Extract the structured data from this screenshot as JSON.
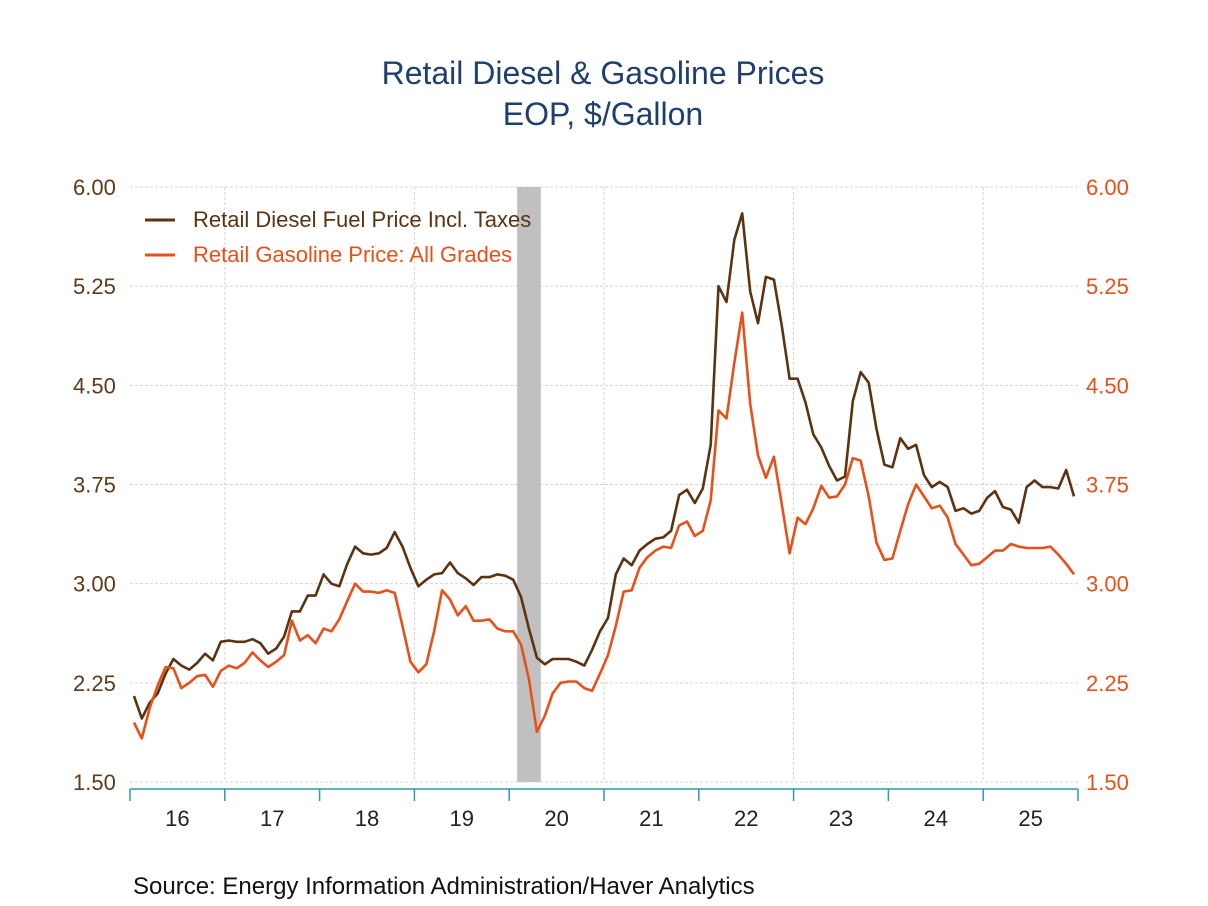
{
  "chart_data": {
    "type": "line",
    "title": "Retail Diesel & Gasoline Prices",
    "subtitle": "EOP, $/Gallon",
    "source": "Source:  Energy Information Administration/Haver Analytics",
    "ylim": [
      1.5,
      6.0
    ],
    "yticks": [
      "1.50",
      "2.25",
      "3.00",
      "3.75",
      "4.50",
      "5.25",
      "6.00"
    ],
    "xlim": [
      2016,
      2026
    ],
    "xtick_labels": [
      "16",
      "17",
      "18",
      "19",
      "20",
      "21",
      "22",
      "23",
      "24",
      "25"
    ],
    "grid": true,
    "legend_position": "top-left",
    "recession_shading": {
      "start": "2020-02",
      "end": "2020-04",
      "color": "#c0c0c0"
    },
    "axis_color": "#2a9bb0",
    "series": [
      {
        "name": "Retail Diesel Fuel Price Incl. Taxes",
        "color": "#5c3310",
        "axis": "left",
        "start": "2016-01",
        "frequency": "monthly",
        "values": [
          2.15,
          1.98,
          2.1,
          2.17,
          2.32,
          2.43,
          2.38,
          2.35,
          2.4,
          2.47,
          2.42,
          2.56,
          2.57,
          2.56,
          2.56,
          2.58,
          2.55,
          2.47,
          2.51,
          2.6,
          2.79,
          2.79,
          2.91,
          2.91,
          3.07,
          3.0,
          2.98,
          3.15,
          3.28,
          3.23,
          3.22,
          3.23,
          3.27,
          3.39,
          3.28,
          3.12,
          2.98,
          3.03,
          3.07,
          3.08,
          3.16,
          3.08,
          3.04,
          2.99,
          3.05,
          3.05,
          3.07,
          3.06,
          3.03,
          2.9,
          2.66,
          2.44,
          2.39,
          2.43,
          2.43,
          2.43,
          2.41,
          2.38,
          2.5,
          2.64,
          2.74,
          3.07,
          3.19,
          3.14,
          3.25,
          3.3,
          3.34,
          3.35,
          3.4,
          3.67,
          3.71,
          3.61,
          3.72,
          4.05,
          5.25,
          5.13,
          5.6,
          5.8,
          5.21,
          4.97,
          5.32,
          5.3,
          4.95,
          4.55,
          4.55,
          4.37,
          4.13,
          4.03,
          3.89,
          3.78,
          3.81,
          4.38,
          4.6,
          4.52,
          4.17,
          3.9,
          3.88,
          4.1,
          4.02,
          4.05,
          3.82,
          3.73,
          3.77,
          3.73,
          3.55,
          3.57,
          3.53,
          3.55,
          3.65,
          3.7,
          3.58,
          3.56,
          3.46,
          3.73,
          3.78,
          3.73,
          3.73,
          3.72,
          3.86,
          3.66
        ]
      },
      {
        "name": "Retail Gasoline Price: All Grades",
        "color": "#e8501a",
        "axis": "right",
        "start": "2016-01",
        "frequency": "monthly",
        "values": [
          1.95,
          1.83,
          2.06,
          2.23,
          2.37,
          2.36,
          2.21,
          2.25,
          2.3,
          2.31,
          2.22,
          2.34,
          2.38,
          2.36,
          2.4,
          2.48,
          2.42,
          2.37,
          2.41,
          2.46,
          2.72,
          2.57,
          2.61,
          2.55,
          2.66,
          2.64,
          2.73,
          2.87,
          3.0,
          2.94,
          2.94,
          2.93,
          2.95,
          2.93,
          2.68,
          2.41,
          2.33,
          2.39,
          2.64,
          2.95,
          2.88,
          2.76,
          2.83,
          2.72,
          2.72,
          2.73,
          2.66,
          2.64,
          2.64,
          2.54,
          2.28,
          1.88,
          2.0,
          2.17,
          2.25,
          2.26,
          2.26,
          2.21,
          2.19,
          2.32,
          2.46,
          2.68,
          2.94,
          2.95,
          3.12,
          3.2,
          3.25,
          3.28,
          3.27,
          3.44,
          3.47,
          3.36,
          3.4,
          3.63,
          4.31,
          4.25,
          4.67,
          5.05,
          4.36,
          3.97,
          3.8,
          3.96,
          3.6,
          3.23,
          3.5,
          3.45,
          3.57,
          3.74,
          3.65,
          3.66,
          3.75,
          3.95,
          3.93,
          3.66,
          3.31,
          3.18,
          3.19,
          3.4,
          3.6,
          3.75,
          3.66,
          3.57,
          3.59,
          3.5,
          3.3,
          3.22,
          3.14,
          3.15,
          3.2,
          3.25,
          3.25,
          3.3,
          3.28,
          3.27,
          3.27,
          3.27,
          3.28,
          3.22,
          3.15,
          3.07
        ]
      }
    ]
  }
}
